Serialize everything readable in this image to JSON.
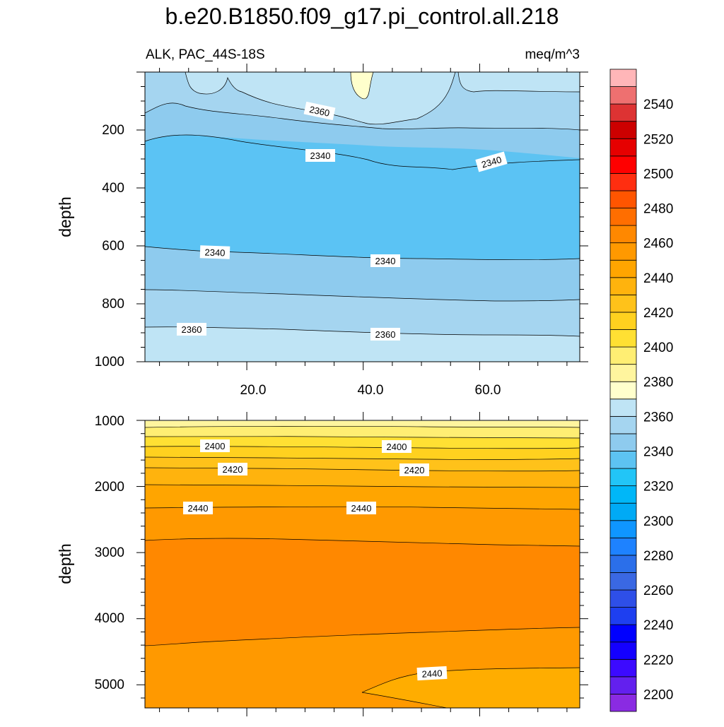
{
  "chart_data": {
    "type": "contour",
    "title": "b.e20.B1850.f09_g17.pi_control.all.218",
    "left_subtitle": "ALK, PAC_44S-18S",
    "right_subtitle": "meq/m^3",
    "colorbar": {
      "levels": [
        2200,
        2210,
        2220,
        2230,
        2240,
        2250,
        2260,
        2270,
        2280,
        2290,
        2300,
        2310,
        2320,
        2330,
        2340,
        2350,
        2360,
        2370,
        2380,
        2390,
        2400,
        2410,
        2420,
        2430,
        2440,
        2450,
        2460,
        2470,
        2480,
        2490,
        2500,
        2510,
        2520,
        2530,
        2540,
        2550
      ],
      "tick_labels": [
        "2200",
        "2220",
        "2240",
        "2260",
        "2280",
        "2300",
        "2320",
        "2340",
        "2360",
        "2380",
        "2400",
        "2420",
        "2440",
        "2460",
        "2480",
        "2500",
        "2520",
        "2540"
      ],
      "colors": [
        "#8a2be2",
        "#6320ee",
        "#3c0aff",
        "#1400ff",
        "#0000ff",
        "#1e3ff0",
        "#2e4fe8",
        "#3a68e3",
        "#2b6fea",
        "#1e82ff",
        "#0f96ff",
        "#00aaf5",
        "#00b7f8",
        "#22c5f7",
        "#5dc3f2",
        "#8ecbee",
        "#a5d5f0",
        "#bfe4f5",
        "#ffffcc",
        "#fff59e",
        "#ffee73",
        "#ffe033",
        "#ffd11f",
        "#ffc21a",
        "#ffb30d",
        "#ffa500",
        "#ff9900",
        "#ff8800",
        "#ff6e00",
        "#ff5500",
        "#ff2e10",
        "#ff0000",
        "#e60000",
        "#cc0000",
        "#dd3333",
        "#ee7070",
        "#ffb6b8"
      ]
    },
    "panels": [
      {
        "name": "upper",
        "ylabel": "depth",
        "yrange": [
          1000,
          0
        ],
        "yticks": [
          "200",
          "400",
          "600",
          "800",
          "1000"
        ],
        "xrange": [
          0,
          75
        ],
        "xticks": [
          "20.0",
          "40.0",
          "60.0"
        ],
        "contour_labels": [
          "2360",
          "2340",
          "2340",
          "2340",
          "2340",
          "2360",
          "2360"
        ]
      },
      {
        "name": "lower",
        "ylabel": "depth",
        "yrange": [
          5350,
          1000
        ],
        "yticks": [
          "1000",
          "2000",
          "3000",
          "4000",
          "5000"
        ],
        "xrange": [
          0,
          75
        ],
        "contour_labels": [
          "2400",
          "2400",
          "2420",
          "2420",
          "2440",
          "2440",
          "2440"
        ]
      }
    ]
  }
}
